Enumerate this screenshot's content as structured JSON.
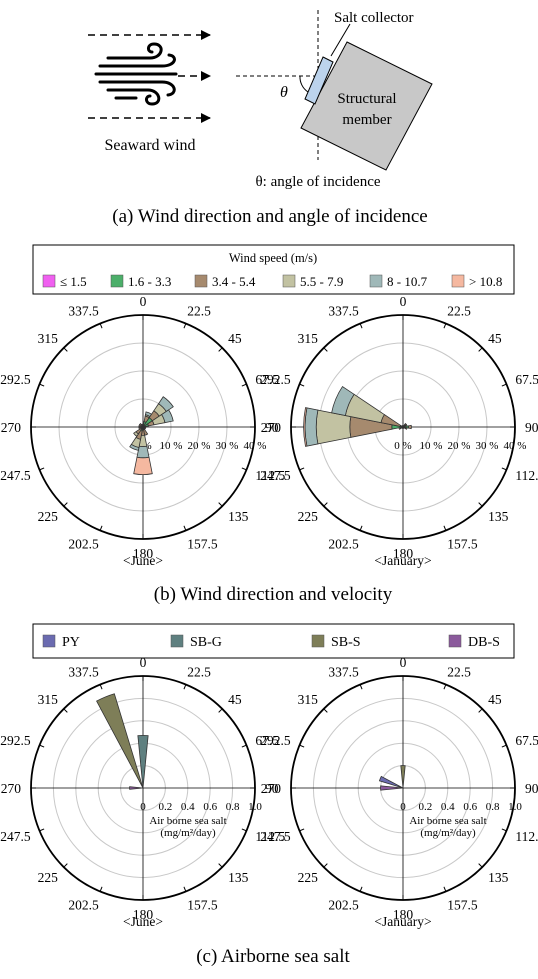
{
  "panel_a": {
    "wind_label": "Seaward wind",
    "collector_label": "Salt collector",
    "member_line1": "Structural",
    "member_line2": "member",
    "theta_symbol": "θ",
    "theta_note": "θ: angle of incidence",
    "caption": "(a) Wind direction and angle of incidence"
  },
  "panel_b": {
    "legend": {
      "title": "Wind speed (m/s)",
      "items": [
        {
          "label": "≤ 1.5",
          "color": "#f060f0"
        },
        {
          "label": "1.6 - 3.3",
          "color": "#4caf6a"
        },
        {
          "label": "3.4 - 5.4",
          "color": "#a68a6e"
        },
        {
          "label": "5.5 - 7.9",
          "color": "#c2c2a2"
        },
        {
          "label": "8 - 10.7",
          "color": "#9fb8b8"
        },
        {
          "label": "> 10.8",
          "color": "#f5b8a0"
        }
      ]
    },
    "caption": "(b) Wind direction and velocity"
  },
  "panel_c": {
    "legend": {
      "items": [
        {
          "label": "PY",
          "color": "#6b6bb0"
        },
        {
          "label": "SB-G",
          "color": "#5f8080"
        },
        {
          "label": "SB-S",
          "color": "#7e7e58"
        },
        {
          "label": "DB-S",
          "color": "#8b5a9c"
        }
      ]
    },
    "caption": "(c) Airborne sea salt"
  },
  "angle_labels": [
    "0",
    "22.5",
    "45",
    "67.5",
    "90",
    "112.5",
    "135",
    "157.5",
    "180",
    "202.5",
    "225",
    "247.5",
    "270",
    "292.5",
    "315",
    "337.5"
  ],
  "chart_data": [
    {
      "type": "polar-bar",
      "subtitle": "<June>",
      "radial_ticks": [
        "0 %",
        "10 %",
        "20 %",
        "30 %",
        "40 %"
      ],
      "rmax": 40,
      "stacked": true,
      "directions": [
        0,
        22.5,
        45,
        67.5,
        90,
        112.5,
        135,
        157.5,
        180,
        202.5,
        225,
        247.5,
        270,
        292.5,
        315,
        337.5
      ],
      "series": [
        {
          "name": "≤ 1.5",
          "values": [
            0,
            0,
            0,
            0,
            0,
            0,
            0,
            0,
            0,
            0,
            0,
            0,
            0,
            0,
            0,
            0
          ]
        },
        {
          "name": "1.6 - 3.3",
          "values": [
            0.5,
            2,
            4,
            2,
            0.5,
            0.5,
            0.5,
            1,
            1,
            1.5,
            1,
            0.5,
            0.5,
            0.5,
            0.5,
            0.5
          ]
        },
        {
          "name": "3.4 - 5.4",
          "values": [
            0.5,
            2,
            3,
            2,
            0.5,
            0.5,
            0.5,
            2,
            2,
            3,
            2,
            1,
            0.5,
            1,
            1,
            0.5
          ]
        },
        {
          "name": "5.5 - 7.9",
          "values": [
            0,
            0.5,
            3,
            4,
            0,
            0,
            0,
            0,
            4,
            3,
            1,
            0,
            0,
            0,
            0,
            0
          ]
        },
        {
          "name": "8 - 10.7",
          "values": [
            0,
            1,
            3,
            3,
            0,
            0,
            0,
            0,
            4,
            1,
            0,
            0,
            0,
            0,
            0,
            0
          ]
        },
        {
          "name": "> 10.8",
          "values": [
            0,
            0,
            0,
            0,
            0,
            0,
            0,
            0,
            6,
            0,
            0,
            0,
            0,
            0,
            0,
            0
          ]
        }
      ]
    },
    {
      "type": "polar-bar",
      "subtitle": "<January>",
      "radial_ticks": [
        "0 %",
        "10 %",
        "20 %",
        "30 %",
        "40 %"
      ],
      "rmax": 40,
      "stacked": true,
      "directions": [
        0,
        22.5,
        45,
        67.5,
        90,
        112.5,
        135,
        157.5,
        180,
        202.5,
        225,
        247.5,
        270,
        292.5,
        315,
        337.5
      ],
      "series": [
        {
          "name": "≤ 1.5",
          "values": [
            0,
            0,
            0,
            0,
            0,
            0,
            0,
            0,
            0,
            0,
            0,
            0,
            0,
            0,
            0,
            0
          ]
        },
        {
          "name": "1.6 - 3.3",
          "values": [
            0.5,
            0.5,
            1,
            1,
            2,
            1,
            0.5,
            0.5,
            0.5,
            0.5,
            0.5,
            1,
            4,
            1,
            0.5,
            0.5
          ]
        },
        {
          "name": "3.4 - 5.4",
          "values": [
            0,
            0,
            0.5,
            0.5,
            1,
            0.5,
            0,
            0,
            0,
            0,
            0,
            0.5,
            15,
            7,
            0,
            0
          ]
        },
        {
          "name": "5.5 - 7.9",
          "values": [
            0,
            0,
            0,
            0,
            0,
            0,
            0,
            0,
            0,
            0,
            0,
            0,
            12,
            13,
            0,
            0
          ]
        },
        {
          "name": "8 - 10.7",
          "values": [
            0,
            0,
            0,
            0,
            0,
            0,
            0,
            0,
            0,
            0,
            0,
            0,
            4,
            5,
            0,
            0
          ]
        },
        {
          "name": "> 10.8",
          "values": [
            0,
            0,
            0,
            0,
            0,
            0,
            0,
            0,
            0,
            0,
            0,
            0,
            0.5,
            0,
            0,
            0
          ]
        }
      ]
    },
    {
      "type": "polar-bar",
      "subtitle": "<June>",
      "radial_ticks": [
        "0",
        "0.2",
        "0.4",
        "0.6",
        "0.8",
        "1.0"
      ],
      "rmax": 1.0,
      "stacked": false,
      "axis_label_line1": "Air borne sea salt",
      "axis_label_line2": "(mg/m²/day)",
      "directions": [
        0,
        337.5,
        270
      ],
      "series": [
        {
          "name": "PY",
          "values": [
            0,
            0,
            0
          ]
        },
        {
          "name": "SB-G",
          "values": [
            0.47,
            0,
            0
          ]
        },
        {
          "name": "SB-S",
          "values": [
            0,
            0.88,
            0
          ]
        },
        {
          "name": "DB-S",
          "values": [
            0,
            0,
            0.12
          ]
        }
      ]
    },
    {
      "type": "polar-bar",
      "subtitle": "<January>",
      "radial_ticks": [
        "0",
        "0.2",
        "0.4",
        "0.6",
        "0.8",
        "1.0"
      ],
      "rmax": 1.0,
      "stacked": false,
      "axis_label_line1": "Air borne sea salt",
      "axis_label_line2": "(mg/m²/day)",
      "directions": [
        0,
        292.5,
        270
      ],
      "series": [
        {
          "name": "PY",
          "values": [
            0,
            0.22,
            0
          ]
        },
        {
          "name": "SB-G",
          "values": [
            0,
            0,
            0
          ]
        },
        {
          "name": "SB-S",
          "values": [
            0.2,
            0,
            0
          ]
        },
        {
          "name": "DB-S",
          "values": [
            0,
            0,
            0.2
          ]
        }
      ]
    }
  ]
}
